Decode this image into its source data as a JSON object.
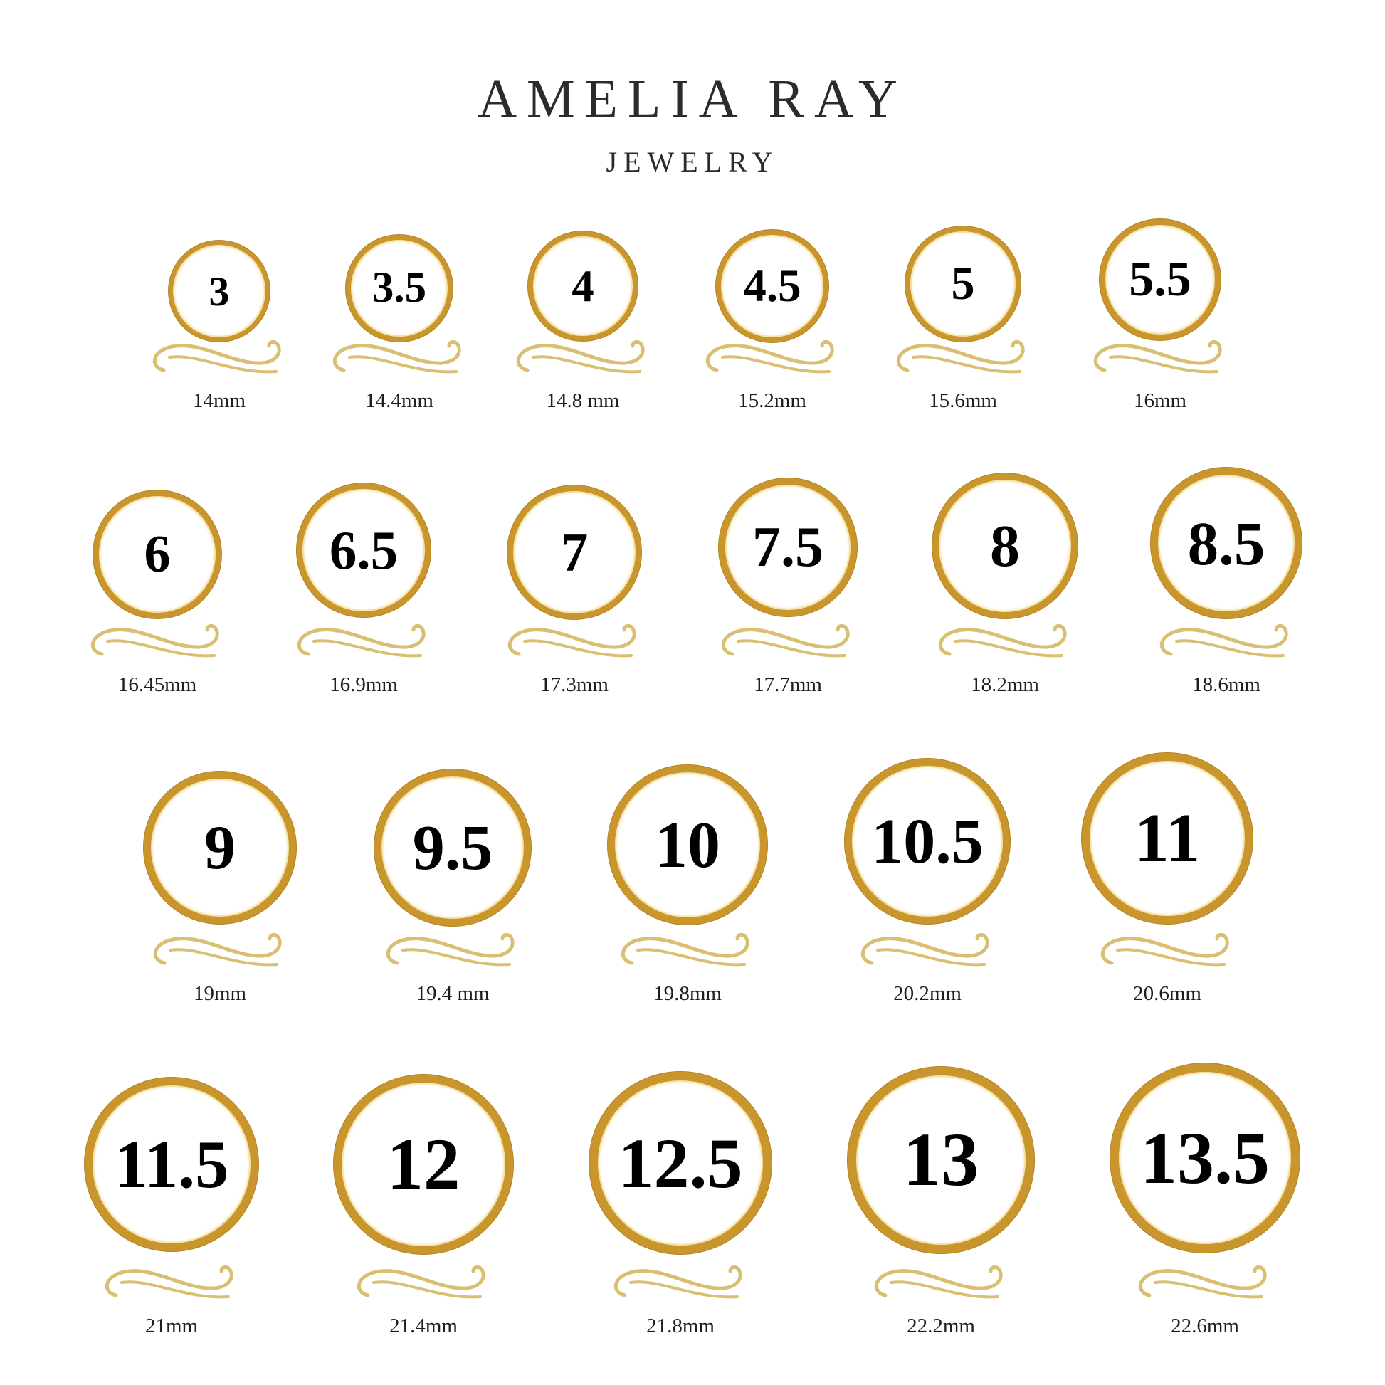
{
  "brand": {
    "title": "AMELIA RAY",
    "subtitle": "JEWELRY"
  },
  "colors": {
    "gold": "#c9962e",
    "swirl": "#d9bf72",
    "text": "#000000"
  },
  "rings": [
    {
      "size": "3",
      "mm": "14mm"
    },
    {
      "size": "3.5",
      "mm": "14.4mm"
    },
    {
      "size": "4",
      "mm": "14.8 mm"
    },
    {
      "size": "4.5",
      "mm": "15.2mm"
    },
    {
      "size": "5",
      "mm": "15.6mm"
    },
    {
      "size": "5.5",
      "mm": "16mm"
    },
    {
      "size": "6",
      "mm": "16.45mm"
    },
    {
      "size": "6.5",
      "mm": "16.9mm"
    },
    {
      "size": "7",
      "mm": "17.3mm"
    },
    {
      "size": "7.5",
      "mm": "17.7mm"
    },
    {
      "size": "8",
      "mm": "18.2mm"
    },
    {
      "size": "8.5",
      "mm": "18.6mm"
    },
    {
      "size": "9",
      "mm": "19mm"
    },
    {
      "size": "9.5",
      "mm": "19.4 mm"
    },
    {
      "size": "10",
      "mm": "19.8mm"
    },
    {
      "size": "10.5",
      "mm": "20.2mm"
    },
    {
      "size": "11",
      "mm": "20.6mm"
    },
    {
      "size": "11.5",
      "mm": "21mm"
    },
    {
      "size": "12",
      "mm": "21.4mm"
    },
    {
      "size": "12.5",
      "mm": "21.8mm"
    },
    {
      "size": "13",
      "mm": "22.2mm"
    },
    {
      "size": "13.5",
      "mm": "22.6mm"
    }
  ]
}
